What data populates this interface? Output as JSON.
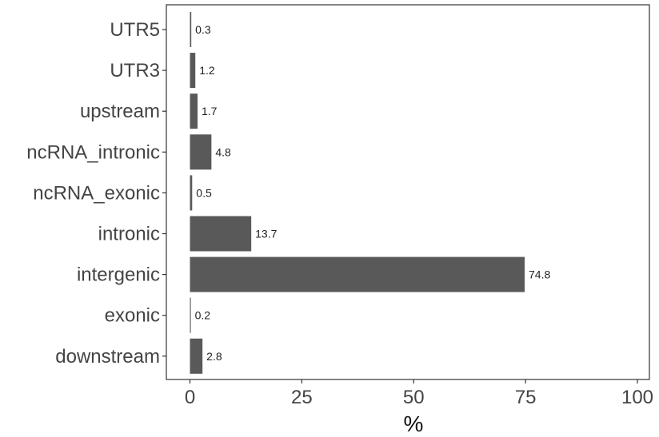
{
  "chart_data": {
    "type": "bar",
    "orientation": "horizontal",
    "categories": [
      "UTR5",
      "UTR3",
      "upstream",
      "ncRNA_intronic",
      "ncRNA_exonic",
      "intronic",
      "intergenic",
      "exonic",
      "downstream"
    ],
    "values": [
      0.3,
      1.2,
      1.7,
      4.8,
      0.5,
      13.7,
      74.8,
      0.2,
      2.8
    ],
    "value_labels": [
      "0.3",
      "1.2",
      "1.7",
      "4.8",
      "0.5",
      "13.7",
      "74.8",
      "0.2",
      "2.8"
    ],
    "xlabel": "%",
    "ylabel": "",
    "xlim": [
      0,
      100
    ],
    "x_ticks": [
      "0",
      "25",
      "50",
      "75",
      "100"
    ],
    "grid": false,
    "bar_color": "#595959"
  }
}
